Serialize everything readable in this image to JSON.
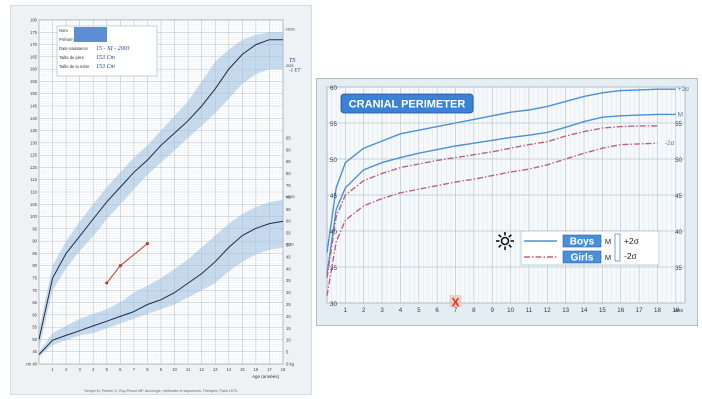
{
  "chart_data": [
    {
      "type": "line",
      "title": "",
      "xlabel": "Age (années)",
      "ylabel": "",
      "xlim": [
        0,
        18
      ],
      "x_ticks": [
        "1",
        "2",
        "3",
        "4",
        "5",
        "6",
        "7",
        "8",
        "9",
        "10",
        "11",
        "12",
        "13",
        "14",
        "15",
        "16",
        "17",
        "18"
      ],
      "height_axis": {
        "ylim": [
          40,
          180
        ],
        "ticks": [
          "180",
          "175",
          "170",
          "165",
          "160",
          "155",
          "150",
          "145",
          "140",
          "135",
          "130",
          "125",
          "120",
          "115",
          "110",
          "105",
          "100",
          "95",
          "90",
          "85",
          "80",
          "75",
          "70",
          "65",
          "60",
          "55",
          "50",
          "45"
        ],
        "bottom_label": "cm 40"
      },
      "weight_axis": {
        "ylim": [
          0,
          100
        ],
        "ticks": [
          "95",
          "90",
          "85",
          "80",
          "75",
          "70",
          "65",
          "60",
          "55",
          "50",
          "45",
          "40",
          "35",
          "30",
          "25",
          "20",
          "15",
          "10",
          "5"
        ],
        "bottom_label": "0 kg"
      },
      "header_form": [
        {
          "label": "Nom",
          "value": ""
        },
        {
          "label": "Prénom",
          "value": ""
        },
        {
          "label": "Date naissance",
          "value": "15 - XI - 2003"
        },
        {
          "label": "Taille du père",
          "value": "153 Cm"
        },
        {
          "label": "Taille de la mère",
          "value": "153 Cm"
        }
      ],
      "band_labels": {
        "height_top": "+2DS",
        "height_bottom": "-2DS",
        "weight_top": "+2DS",
        "weight_bottom": "-2DS"
      },
      "annotations": [
        "TS",
        "-1 ET"
      ],
      "footer": "Sempé M, Pédron G, Roy-Pernot MP. Auxologie, méthodes et séquences. Théraplix, Paris 1979.",
      "series": [
        {
          "axis": "height",
          "x": [
            0,
            1,
            2,
            3,
            4,
            5,
            6,
            7,
            8,
            9,
            10,
            11,
            12,
            13,
            14,
            15,
            16,
            17,
            18
          ],
          "upper": [
            54,
            80,
            90,
            98,
            105,
            112,
            118,
            124,
            129,
            135,
            141,
            147,
            155,
            163,
            168,
            172,
            174,
            175,
            175
          ],
          "mean": [
            50,
            75,
            85,
            92,
            99,
            106,
            112,
            118,
            123,
            129,
            134,
            139,
            145,
            152,
            160,
            166,
            170,
            172,
            172
          ],
          "lower": [
            46,
            70,
            79,
            86,
            92,
            99,
            105,
            111,
            117,
            122,
            127,
            132,
            137,
            142,
            148,
            154,
            158,
            160,
            160
          ]
        },
        {
          "axis": "weight",
          "x": [
            0,
            1,
            2,
            3,
            4,
            5,
            6,
            7,
            8,
            9,
            10,
            11,
            12,
            13,
            14,
            15,
            16,
            17,
            18
          ],
          "upper": [
            5,
            13,
            16,
            19,
            21,
            23,
            26,
            30,
            33,
            36,
            40,
            44,
            49,
            54,
            59,
            63,
            66,
            68,
            69
          ],
          "mean": [
            4,
            10,
            12,
            14,
            16,
            18,
            20,
            22,
            25,
            27,
            30,
            34,
            38,
            43,
            49,
            54,
            57,
            59,
            60
          ],
          "lower": [
            3,
            8,
            10,
            12,
            13,
            15,
            17,
            19,
            21,
            23,
            25,
            28,
            31,
            34,
            39,
            43,
            46,
            48,
            49
          ]
        },
        {
          "name": "patient",
          "axis": "height",
          "x": [
            5,
            6,
            8
          ],
          "y": [
            73,
            80,
            89
          ]
        }
      ]
    },
    {
      "type": "line",
      "title": "CRANIAL PERIMETER",
      "xlabel": "",
      "ylabel": "",
      "xlim": [
        0,
        19.5
      ],
      "ylim": [
        30,
        60
      ],
      "x_ticks": [
        "1",
        "2",
        "3",
        "4",
        "5",
        "6",
        "7",
        "8",
        "9",
        "10",
        "11",
        "12",
        "13",
        "14",
        "15",
        "16",
        "17",
        "18",
        "19"
      ],
      "x_unit": "ans",
      "y_ticks_left": [
        "60",
        "55",
        "50",
        "45",
        "40",
        "35",
        "30"
      ],
      "y_ticks_right": [
        "55",
        "50",
        "45",
        "40",
        "35"
      ],
      "curve_labels": {
        "plus": "+2σ",
        "mean": "M",
        "minus": "-2σ"
      },
      "legend": {
        "entries": [
          {
            "label": "Boys",
            "color": "#4a90d9"
          },
          {
            "label": "Girls",
            "color": "#c06080"
          }
        ],
        "mean_label": "M",
        "plus_label": "+2σ",
        "minus_label": "-2σ",
        "placement": "bottom-right"
      },
      "marker": {
        "x": 7,
        "symbol": "X",
        "color": "#e03020"
      },
      "series": [
        {
          "name": "Boys",
          "role": "+2σ",
          "color": "#4a90d9",
          "x": [
            0,
            0.5,
            1,
            2,
            3,
            4,
            5,
            6,
            7,
            8,
            9,
            10,
            11,
            12,
            13,
            14,
            15,
            16,
            17,
            18,
            19
          ],
          "y": [
            37,
            46,
            49.5,
            51.5,
            52.5,
            53.5,
            54,
            54.5,
            55,
            55.5,
            56,
            56.5,
            56.8,
            57.3,
            58,
            58.7,
            59.2,
            59.5,
            59.6,
            59.7,
            59.7
          ]
        },
        {
          "name": "Boys",
          "role": "M",
          "color": "#4a90d9",
          "x": [
            0,
            0.5,
            1,
            2,
            3,
            4,
            5,
            6,
            7,
            8,
            9,
            10,
            11,
            12,
            13,
            14,
            15,
            16,
            17,
            18,
            19
          ],
          "y": [
            34,
            43,
            46,
            48.5,
            49.5,
            50.2,
            50.8,
            51.3,
            51.8,
            52.2,
            52.6,
            53,
            53.3,
            53.7,
            54.4,
            55.2,
            55.8,
            56,
            56.1,
            56.2,
            56.2
          ]
        },
        {
          "name": "Girls",
          "role": "M",
          "color": "#c06080",
          "x": [
            0,
            0.5,
            1,
            2,
            3,
            4,
            5,
            6,
            7,
            8,
            9,
            10,
            11,
            12,
            13,
            14,
            15,
            16,
            17,
            18
          ],
          "y": [
            33.5,
            42,
            45,
            47,
            48,
            48.8,
            49.3,
            49.8,
            50.2,
            50.6,
            51,
            51.5,
            52,
            52.4,
            53.2,
            53.8,
            54.3,
            54.5,
            54.6,
            54.6
          ]
        },
        {
          "name": "Girls",
          "role": "-2σ",
          "color": "#c06080",
          "x": [
            0,
            0.5,
            1,
            2,
            3,
            4,
            5,
            6,
            7,
            8,
            9,
            10,
            11,
            12,
            13,
            14,
            15,
            16,
            17,
            18
          ],
          "y": [
            31,
            38.5,
            41.5,
            43.5,
            44.5,
            45.3,
            45.8,
            46.3,
            46.8,
            47.2,
            47.7,
            48.2,
            48.6,
            49.2,
            50,
            50.8,
            51.5,
            52,
            52.1,
            52.2
          ]
        }
      ]
    }
  ]
}
